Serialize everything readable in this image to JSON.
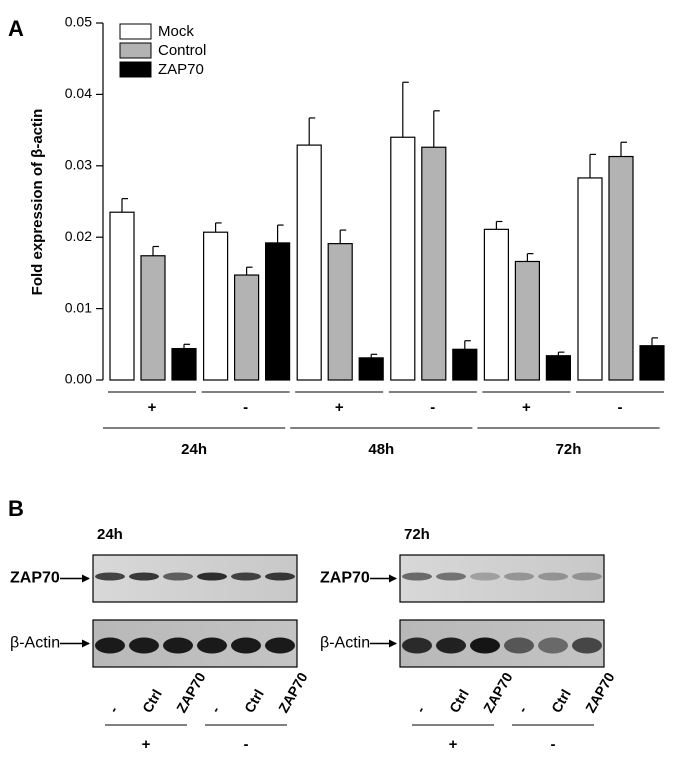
{
  "panel_a_label": "A",
  "chart_data": {
    "type": "bar",
    "ylabel": "Fold expression of β-actin",
    "categories": [
      "+",
      "-",
      "+",
      "-",
      "+",
      "-"
    ],
    "group_labels": [
      "24h",
      "48h",
      "72h"
    ],
    "series": [
      {
        "name": "Mock",
        "color": "#ffffff",
        "values": [
          0.0235,
          0.0207,
          0.0329,
          0.034,
          0.0211,
          0.0283
        ],
        "errors": [
          0.0019,
          0.0013,
          0.0038,
          0.0077,
          0.0011,
          0.0033
        ]
      },
      {
        "name": "Control",
        "color": "#b3b3b3",
        "values": [
          0.0174,
          0.0147,
          0.0191,
          0.0326,
          0.0166,
          0.0313
        ],
        "errors": [
          0.0013,
          0.0011,
          0.0019,
          0.0051,
          0.0011,
          0.002
        ]
      },
      {
        "name": "ZAP70",
        "color": "#000000",
        "values": [
          0.0044,
          0.0192,
          0.0031,
          0.0043,
          0.0034,
          0.0048
        ],
        "errors": [
          0.0006,
          0.0025,
          0.0005,
          0.0012,
          0.0005,
          0.0011
        ]
      }
    ],
    "ylim": [
      0,
      0.05
    ],
    "yticks": [
      {
        "value": 0,
        "label": "0.00"
      },
      0.01,
      0.02,
      0.03,
      0.04,
      0.05
    ],
    "legend": "upper left"
  },
  "panel_b": {
    "label": "B",
    "blots": [
      {
        "time": "24h",
        "rows": [
          "ZAP70",
          "β-Actin"
        ],
        "lanes": [
          "-",
          "Ctrl",
          "ZAP70",
          "-",
          "Ctrl",
          "ZAP70"
        ],
        "groups": [
          "+",
          "-"
        ]
      },
      {
        "time": "72h",
        "rows": [
          "ZAP70",
          "β-Actin"
        ],
        "lanes": [
          "-",
          "Ctrl",
          "ZAP70",
          "-",
          "Ctrl",
          "ZAP70"
        ],
        "groups": [
          "+",
          "-"
        ]
      }
    ]
  }
}
